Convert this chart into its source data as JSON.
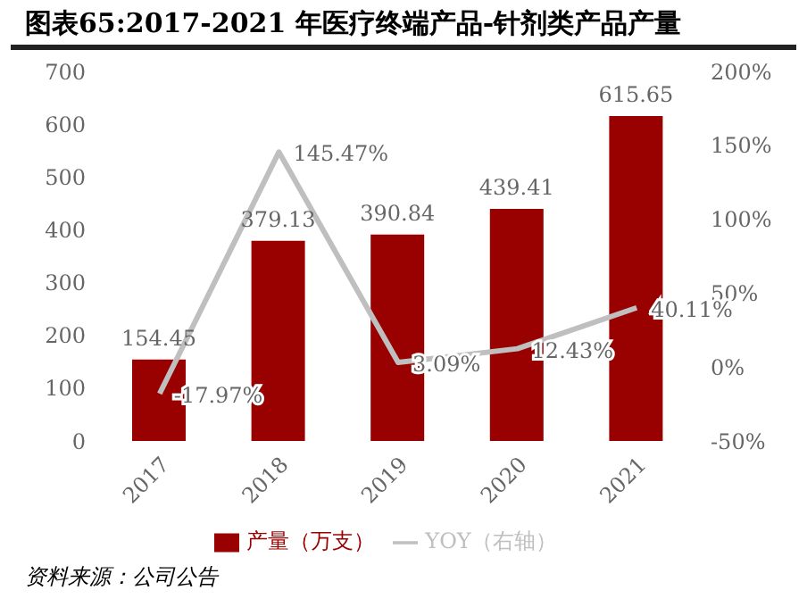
{
  "chart_data": {
    "type": "bar",
    "title": "图表65:2017-2021 年医疗终端产品-针剂类产品产量",
    "categories": [
      "2017",
      "2018",
      "2019",
      "2020",
      "2021"
    ],
    "series": [
      {
        "name": "产量（万支）",
        "color": "#990000",
        "values": [
          154.45,
          379.13,
          390.84,
          439.41,
          615.65
        ],
        "value_labels": [
          "154.45",
          "379.13",
          "390.84",
          "439.41",
          "615.65"
        ]
      },
      {
        "name": "YOY（右轴）",
        "type": "line",
        "axis": "y2",
        "color": "#bfbfbf",
        "values": [
          -17.97,
          145.47,
          3.09,
          12.43,
          40.11
        ],
        "value_labels": [
          "-17.97%",
          "145.47%",
          "3.09%",
          "12.43%",
          "40.11%"
        ]
      }
    ],
    "ylim": [
      0,
      700
    ],
    "yticks": [
      0,
      100,
      200,
      300,
      400,
      500,
      600,
      700
    ],
    "y2lim": [
      -50,
      200
    ],
    "y2ticks": [
      {
        "value": -50,
        "label": "-50%"
      },
      {
        "value": 0,
        "label": "0%"
      },
      {
        "value": 50,
        "label": "50%"
      },
      {
        "value": 100,
        "label": "100%"
      },
      {
        "value": 150,
        "label": "150%"
      },
      {
        "value": 200,
        "label": "200%"
      }
    ],
    "grid": false,
    "legend": "bottom",
    "marker": "none",
    "annotations": [
      "资料来源：公司公告"
    ]
  }
}
